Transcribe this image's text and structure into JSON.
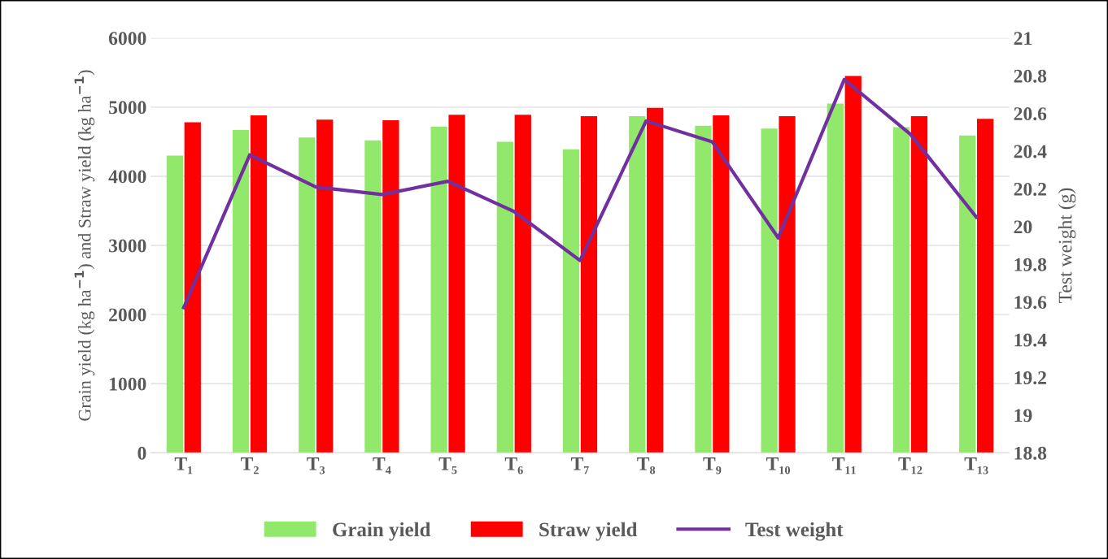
{
  "chart_data": {
    "type": "bar",
    "categories": [
      "T₁",
      "T₂",
      "T₃",
      "T₄",
      "T₅",
      "T₆",
      "T₇",
      "T₈",
      "T₉",
      "T₁₀",
      "T₁₁",
      "T₁₂",
      "T₁₃"
    ],
    "series": [
      {
        "name": "Grain yield",
        "color": "#92e86a",
        "values": [
          4300,
          4670,
          4560,
          4520,
          4720,
          4500,
          4390,
          4870,
          4730,
          4690,
          5050,
          4710,
          4590
        ]
      },
      {
        "name": "Straw yield",
        "color": "#ff0000",
        "values": [
          4780,
          4880,
          4820,
          4810,
          4890,
          4890,
          4870,
          4990,
          4880,
          4870,
          5450,
          4870,
          4830
        ]
      },
      {
        "name": "Test weight",
        "type": "line",
        "axis": "y2",
        "color": "#7030a0",
        "values": [
          19.57,
          20.38,
          20.21,
          20.17,
          20.24,
          20.08,
          19.82,
          20.56,
          20.45,
          19.94,
          20.78,
          20.49,
          20.05
        ]
      }
    ],
    "ylabel": "Grain yield (kg ha$^{−1}$) and Straw yield (kg ha$^{−1}$)",
    "y2label": "Test weight (g)",
    "ylim": [
      0,
      6000
    ],
    "yticks": [
      0,
      1000,
      2000,
      3000,
      4000,
      5000,
      6000
    ],
    "y2lim": [
      18.8,
      21
    ],
    "y2ticks": [
      18.8,
      19,
      19.2,
      19.4,
      19.6,
      19.8,
      20,
      20.2,
      20.4,
      20.6,
      20.8,
      21
    ],
    "grid": "y",
    "legend": "bottom",
    "marker": "none",
    "line_style": "solid"
  }
}
